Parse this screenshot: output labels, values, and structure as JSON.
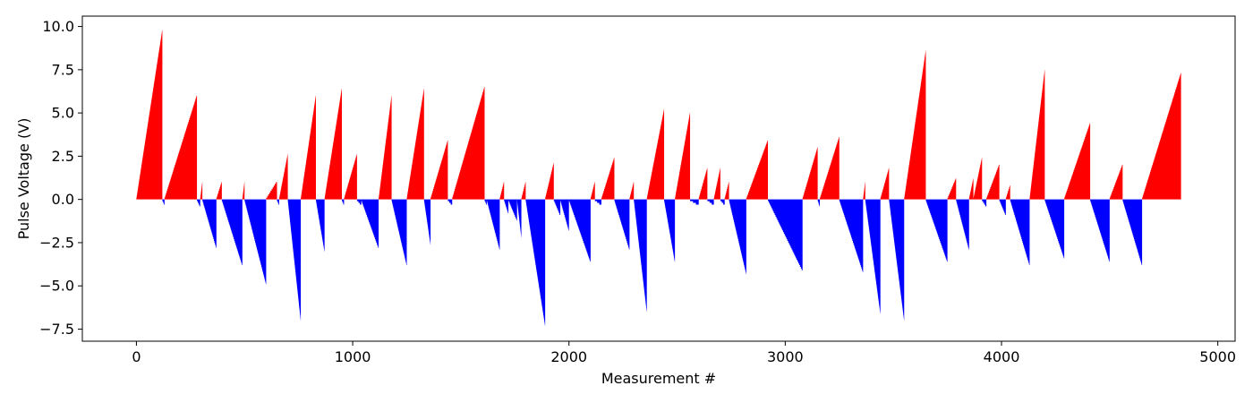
{
  "chart_data": {
    "type": "bar",
    "title": "",
    "xlabel": "Measurement #",
    "ylabel": "Pulse Voltage (V)",
    "xlim": [
      -250,
      5080
    ],
    "ylim": [
      -8.2,
      10.6
    ],
    "xticks": [
      0,
      1000,
      2000,
      3000,
      4000,
      5000
    ],
    "xtick_labels": [
      "0",
      "1000",
      "2000",
      "3000",
      "4000",
      "5000"
    ],
    "yticks": [
      -7.5,
      -5.0,
      -2.5,
      0.0,
      2.5,
      5.0,
      7.5,
      10.0
    ],
    "ytick_labels": [
      "−7.5",
      "−5.0",
      "−2.5",
      "0.0",
      "2.5",
      "5.0",
      "7.5",
      "10.0"
    ],
    "grid": false,
    "colors": {
      "positive": "#ff0000",
      "negative": "#0000ff"
    },
    "sweep_step_volts": 0.1,
    "sweeps": [
      {
        "start": 0,
        "end": 120,
        "peak": 9.8
      },
      {
        "start": 120,
        "end": 130,
        "peak": -0.3
      },
      {
        "start": 130,
        "end": 280,
        "peak": 6.0
      },
      {
        "start": 280,
        "end": 295,
        "peak": -0.4
      },
      {
        "start": 295,
        "end": 305,
        "peak": 1.0
      },
      {
        "start": 305,
        "end": 370,
        "peak": -2.8
      },
      {
        "start": 370,
        "end": 395,
        "peak": 1.0
      },
      {
        "start": 395,
        "end": 490,
        "peak": -3.8
      },
      {
        "start": 490,
        "end": 500,
        "peak": 1.0
      },
      {
        "start": 500,
        "end": 600,
        "peak": -4.9
      },
      {
        "start": 600,
        "end": 650,
        "peak": 1.0
      },
      {
        "start": 650,
        "end": 660,
        "peak": -0.3
      },
      {
        "start": 660,
        "end": 700,
        "peak": 2.6
      },
      {
        "start": 700,
        "end": 760,
        "peak": -7.0
      },
      {
        "start": 760,
        "end": 830,
        "peak": 6.0
      },
      {
        "start": 830,
        "end": 870,
        "peak": -3.0
      },
      {
        "start": 870,
        "end": 950,
        "peak": 6.4
      },
      {
        "start": 950,
        "end": 960,
        "peak": -0.3
      },
      {
        "start": 960,
        "end": 1020,
        "peak": 2.6
      },
      {
        "start": 1020,
        "end": 1040,
        "peak": -0.3
      },
      {
        "start": 1040,
        "end": 1120,
        "peak": -2.8
      },
      {
        "start": 1120,
        "end": 1180,
        "peak": 6.0
      },
      {
        "start": 1180,
        "end": 1250,
        "peak": -3.8
      },
      {
        "start": 1250,
        "end": 1330,
        "peak": 6.4
      },
      {
        "start": 1330,
        "end": 1360,
        "peak": -2.6
      },
      {
        "start": 1360,
        "end": 1440,
        "peak": 3.4
      },
      {
        "start": 1440,
        "end": 1460,
        "peak": -0.3
      },
      {
        "start": 1460,
        "end": 1610,
        "peak": 6.5
      },
      {
        "start": 1610,
        "end": 1620,
        "peak": -0.3
      },
      {
        "start": 1620,
        "end": 1680,
        "peak": -2.9
      },
      {
        "start": 1680,
        "end": 1700,
        "peak": 1.0
      },
      {
        "start": 1700,
        "end": 1720,
        "peak": -0.8
      },
      {
        "start": 1720,
        "end": 1760,
        "peak": -1.2
      },
      {
        "start": 1760,
        "end": 1780,
        "peak": -2.2
      },
      {
        "start": 1780,
        "end": 1800,
        "peak": 1.0
      },
      {
        "start": 1800,
        "end": 1890,
        "peak": -7.3
      },
      {
        "start": 1890,
        "end": 1930,
        "peak": 2.1
      },
      {
        "start": 1930,
        "end": 1960,
        "peak": -0.9
      },
      {
        "start": 1960,
        "end": 2000,
        "peak": -1.8
      },
      {
        "start": 2000,
        "end": 2100,
        "peak": -3.6
      },
      {
        "start": 2100,
        "end": 2120,
        "peak": 1.0
      },
      {
        "start": 2120,
        "end": 2150,
        "peak": -0.3
      },
      {
        "start": 2150,
        "end": 2210,
        "peak": 2.4
      },
      {
        "start": 2210,
        "end": 2280,
        "peak": -2.9
      },
      {
        "start": 2280,
        "end": 2300,
        "peak": 1.0
      },
      {
        "start": 2300,
        "end": 2360,
        "peak": -6.5
      },
      {
        "start": 2360,
        "end": 2440,
        "peak": 5.2
      },
      {
        "start": 2440,
        "end": 2490,
        "peak": -3.6
      },
      {
        "start": 2490,
        "end": 2560,
        "peak": 5.0
      },
      {
        "start": 2560,
        "end": 2600,
        "peak": -0.3
      },
      {
        "start": 2600,
        "end": 2640,
        "peak": 1.8
      },
      {
        "start": 2640,
        "end": 2670,
        "peak": -0.3
      },
      {
        "start": 2670,
        "end": 2700,
        "peak": 1.8
      },
      {
        "start": 2700,
        "end": 2720,
        "peak": -0.3
      },
      {
        "start": 2720,
        "end": 2740,
        "peak": 1.0
      },
      {
        "start": 2740,
        "end": 2820,
        "peak": -4.3
      },
      {
        "start": 2820,
        "end": 2920,
        "peak": 3.4
      },
      {
        "start": 2920,
        "end": 3080,
        "peak": -4.1
      },
      {
        "start": 3080,
        "end": 3150,
        "peak": 3.0
      },
      {
        "start": 3150,
        "end": 3160,
        "peak": -0.4
      },
      {
        "start": 3160,
        "end": 3250,
        "peak": 3.6
      },
      {
        "start": 3250,
        "end": 3360,
        "peak": -4.2
      },
      {
        "start": 3360,
        "end": 3370,
        "peak": 1.0
      },
      {
        "start": 3370,
        "end": 3440,
        "peak": -6.6
      },
      {
        "start": 3440,
        "end": 3480,
        "peak": 1.8
      },
      {
        "start": 3480,
        "end": 3550,
        "peak": -7.0
      },
      {
        "start": 3550,
        "end": 3650,
        "peak": 8.6
      },
      {
        "start": 3650,
        "end": 3750,
        "peak": -3.6
      },
      {
        "start": 3750,
        "end": 3790,
        "peak": 1.2
      },
      {
        "start": 3790,
        "end": 3850,
        "peak": -2.9
      },
      {
        "start": 3850,
        "end": 3870,
        "peak": 1.2
      },
      {
        "start": 3870,
        "end": 3910,
        "peak": 2.4
      },
      {
        "start": 3910,
        "end": 3930,
        "peak": -0.4
      },
      {
        "start": 3930,
        "end": 3990,
        "peak": 2.0
      },
      {
        "start": 3990,
        "end": 4020,
        "peak": -0.9
      },
      {
        "start": 4020,
        "end": 4040,
        "peak": 0.8
      },
      {
        "start": 4040,
        "end": 4130,
        "peak": -3.8
      },
      {
        "start": 4130,
        "end": 4200,
        "peak": 7.5
      },
      {
        "start": 4200,
        "end": 4290,
        "peak": -3.4
      },
      {
        "start": 4290,
        "end": 4410,
        "peak": 4.4
      },
      {
        "start": 4410,
        "end": 4500,
        "peak": -3.6
      },
      {
        "start": 4500,
        "end": 4560,
        "peak": 2.0
      },
      {
        "start": 4560,
        "end": 4650,
        "peak": -3.8
      },
      {
        "start": 4650,
        "end": 4830,
        "peak": 7.3
      }
    ]
  }
}
